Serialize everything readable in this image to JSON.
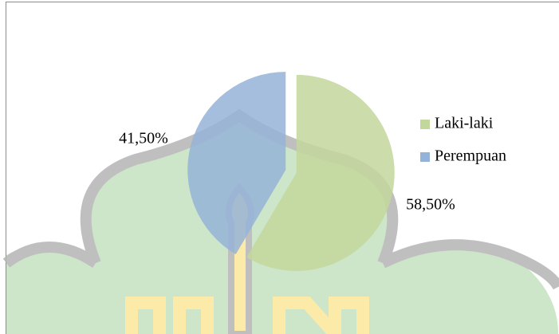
{
  "chart_data": {
    "type": "pie",
    "categories": [
      "Laki-laki",
      "Perempuan"
    ],
    "values": [
      58.5,
      41.5
    ],
    "value_labels": [
      "58,50%",
      "41,50%"
    ],
    "colors": [
      "#c3d69b",
      "#95b3d7"
    ],
    "legend": "right"
  }
}
